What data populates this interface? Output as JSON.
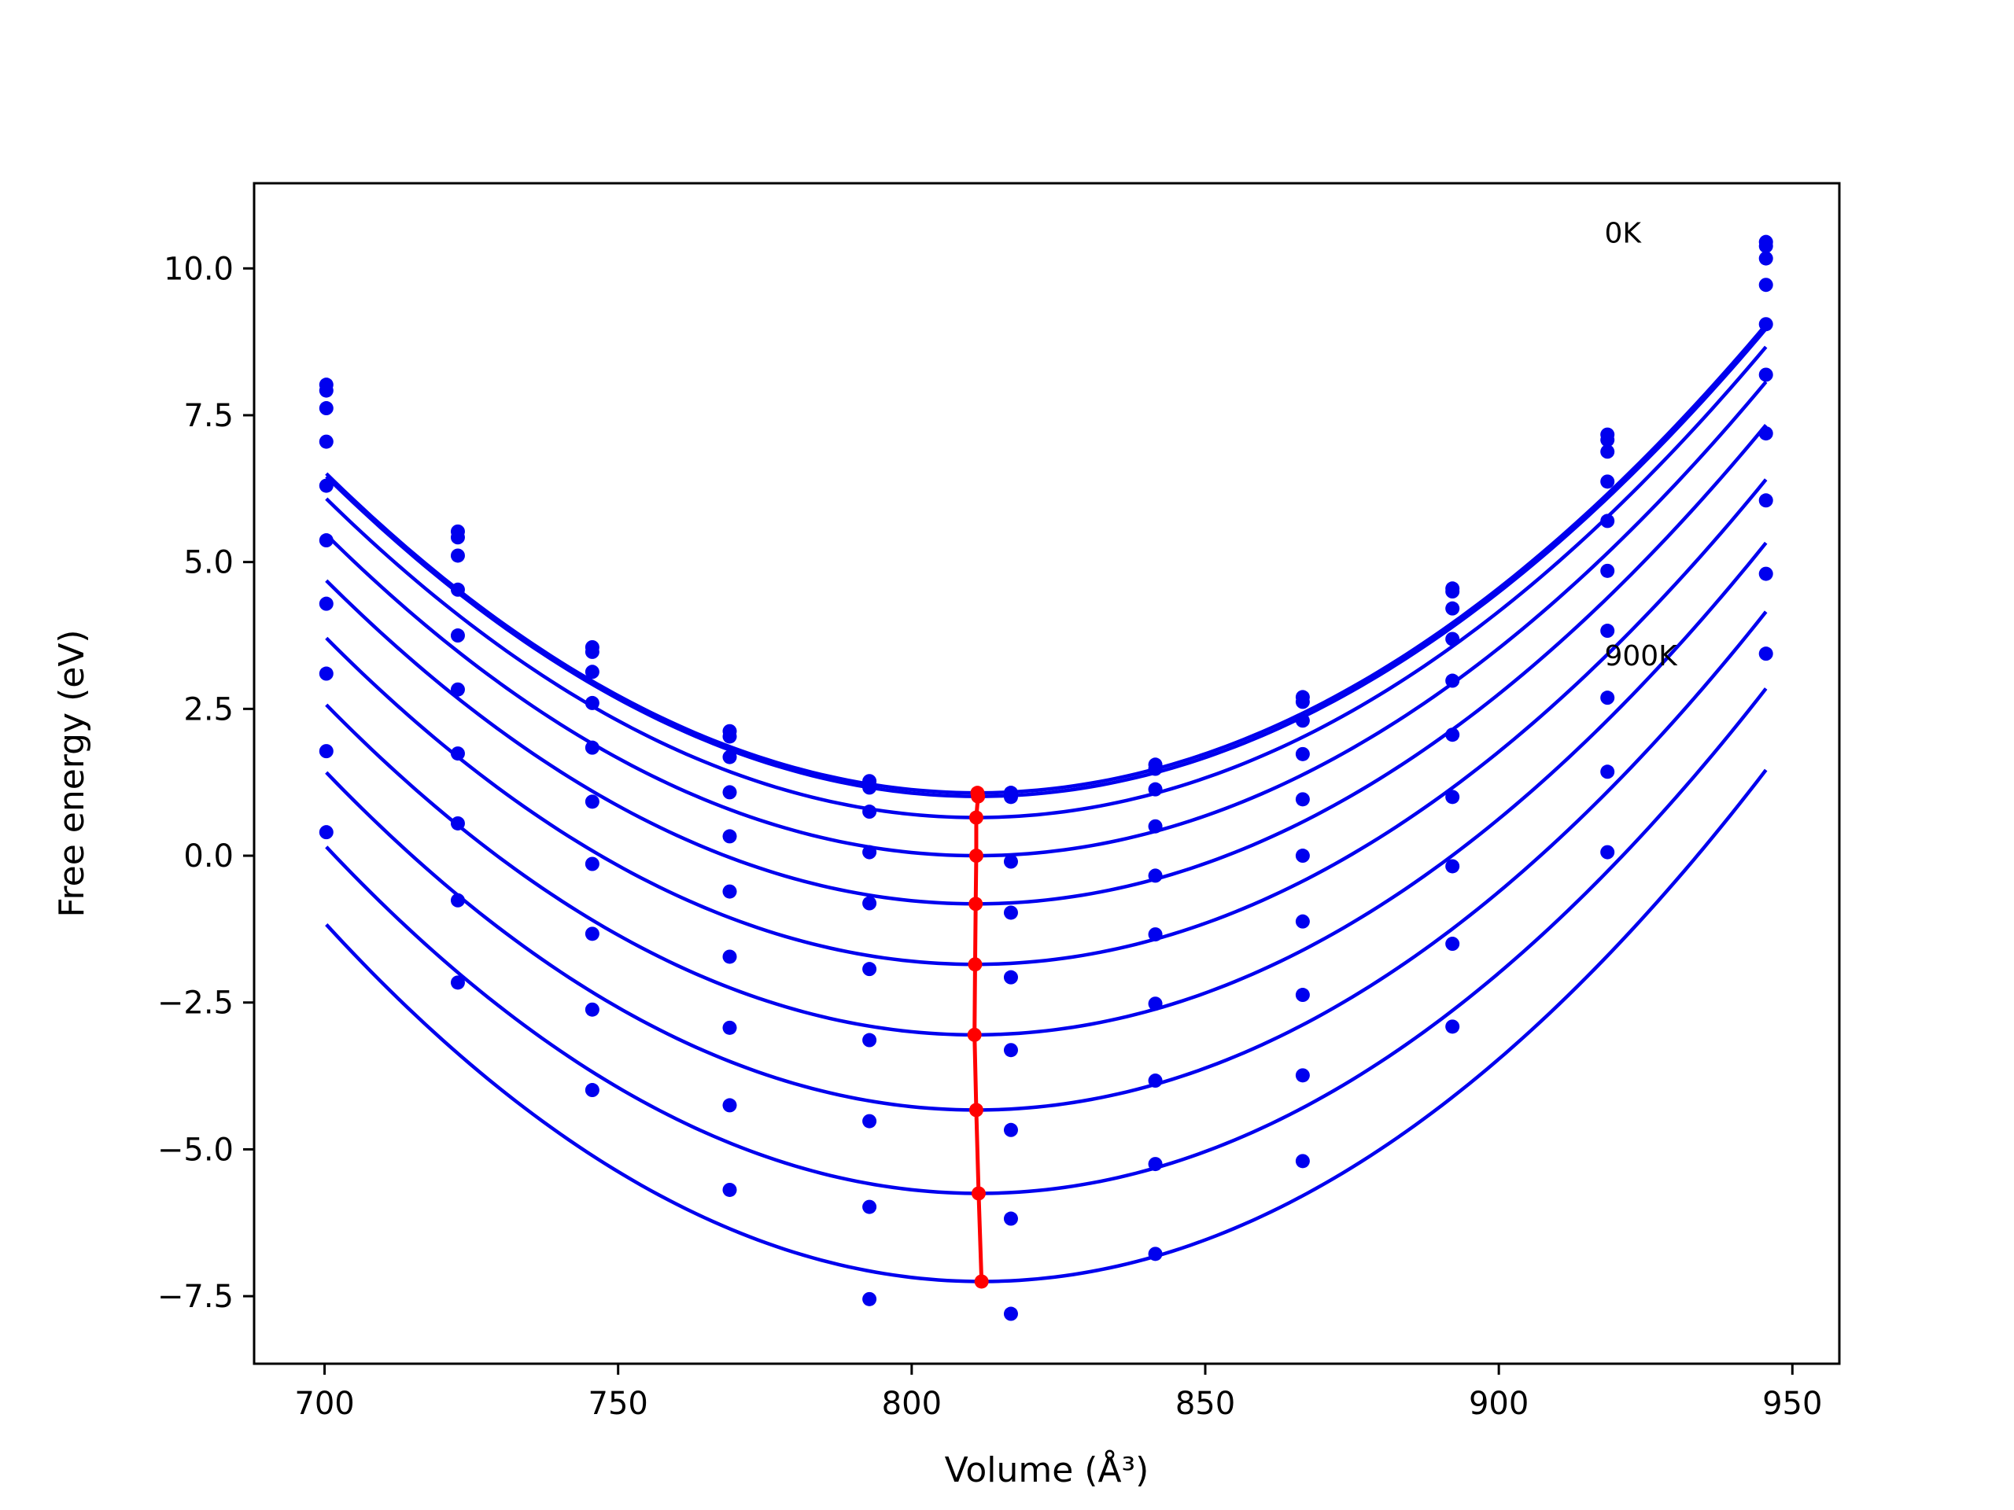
{
  "chart_data": {
    "type": "line",
    "title": "",
    "xlabel": "Volume (Å³)",
    "ylabel": "Free energy (eV)",
    "xlim": [
      688,
      958
    ],
    "ylim": [
      -8.65,
      11.45
    ],
    "xticks": [
      700,
      750,
      800,
      850,
      900,
      950
    ],
    "yticks": [
      -7.5,
      -5.0,
      -2.5,
      0.0,
      2.5,
      5.0,
      7.5,
      10.0
    ],
    "ytick_labels": [
      "−7.5",
      "−5.0",
      "−2.5",
      "0.0",
      "2.5",
      "5.0",
      "7.5",
      "10.0"
    ],
    "grid": false,
    "annotations": [
      {
        "text": "0K",
        "x": 918,
        "y": 10.6
      },
      {
        "text": "900K",
        "x": 918,
        "y": 3.4
      }
    ],
    "colors": {
      "fit": "#0000ee",
      "points": "#0000ee",
      "minimum": "#ff0000"
    },
    "x_points": [
      700.3,
      722.7,
      745.6,
      769.0,
      792.8,
      816.9,
      841.5,
      866.6,
      892.1,
      918.5,
      945.5
    ],
    "series": [
      {
        "points": [
          8.02,
          5.52,
          3.55,
          2.12,
          1.27,
          1.07,
          1.55,
          2.7,
          4.55,
          7.17,
          10.45
        ],
        "fit": {
          "v0": 811.2,
          "e0": 1.07,
          "a": 0.000442
        }
      },
      {
        "points": [
          7.92,
          5.42,
          3.47,
          2.03,
          1.21,
          1.0,
          1.48,
          2.62,
          4.5,
          7.08,
          10.38
        ],
        "fit": {
          "v0": 811.3,
          "e0": 1.01,
          "a": 0.000442
        }
      },
      {
        "points": [
          7.62,
          5.11,
          3.13,
          1.68,
          1.16,
          1.07,
          1.13,
          2.3,
          4.21,
          6.88,
          10.17
        ],
        "fit": {
          "v0": 811.0,
          "e0": 0.65,
          "a": 0.000443
        }
      },
      {
        "points": [
          7.05,
          4.53,
          2.6,
          1.08,
          0.75,
          -0.1,
          0.5,
          1.73,
          3.69,
          6.37,
          9.72
        ],
        "fit": {
          "v0": 811.0,
          "e0": 0.0,
          "a": 0.000446
        }
      },
      {
        "points": [
          6.3,
          3.75,
          1.84,
          0.33,
          0.06,
          -0.97,
          -0.34,
          0.96,
          2.98,
          5.7,
          9.05
        ],
        "fit": {
          "v0": 810.9,
          "e0": -0.82,
          "a": 0.00045
        }
      },
      {
        "points": [
          5.37,
          2.83,
          0.92,
          -0.61,
          -0.81,
          -2.07,
          -1.34,
          0.0,
          2.06,
          4.85,
          8.19
        ],
        "fit": {
          "v0": 810.8,
          "e0": -1.85,
          "a": 0.000455
        }
      },
      {
        "points": [
          4.29,
          1.74,
          -0.14,
          -1.72,
          -1.93,
          -3.31,
          -2.52,
          -1.12,
          1.0,
          3.83,
          7.19
        ],
        "fit": {
          "v0": 810.7,
          "e0": -3.05,
          "a": 0.000461
        }
      },
      {
        "points": [
          3.1,
          0.55,
          -1.33,
          -2.93,
          -3.14,
          -4.67,
          -3.83,
          -2.37,
          -0.18,
          2.69,
          6.05
        ],
        "fit": {
          "v0": 811.0,
          "e0": -4.33,
          "a": 0.000469
        }
      },
      {
        "points": [
          1.78,
          -0.76,
          -2.62,
          -4.25,
          -4.52,
          -6.18,
          -5.25,
          -3.74,
          -1.5,
          1.43,
          4.8
        ],
        "fit": {
          "v0": 811.4,
          "e0": -5.75,
          "a": 0.000478
        }
      },
      {
        "points": [
          0.4,
          -2.16,
          -3.99,
          -5.69,
          -5.98,
          -7.8,
          -6.78,
          -5.2,
          -2.91,
          0.06,
          3.44
        ],
        "fit": {
          "v0": 811.9,
          "e0": -7.25,
          "a": 0.000488
        }
      },
      {
        "points": [
          null,
          null,
          null,
          null,
          -7.55,
          null,
          null,
          null,
          null,
          null,
          null
        ],
        "fit": null
      }
    ],
    "minimum_path": {
      "x": [
        811.2,
        811.3,
        811.0,
        811.0,
        810.9,
        810.8,
        810.7,
        811.0,
        811.4,
        811.9
      ],
      "y": [
        1.07,
        1.01,
        0.65,
        0.0,
        -0.82,
        -1.85,
        -3.05,
        -4.33,
        -5.75,
        -7.25
      ]
    }
  }
}
